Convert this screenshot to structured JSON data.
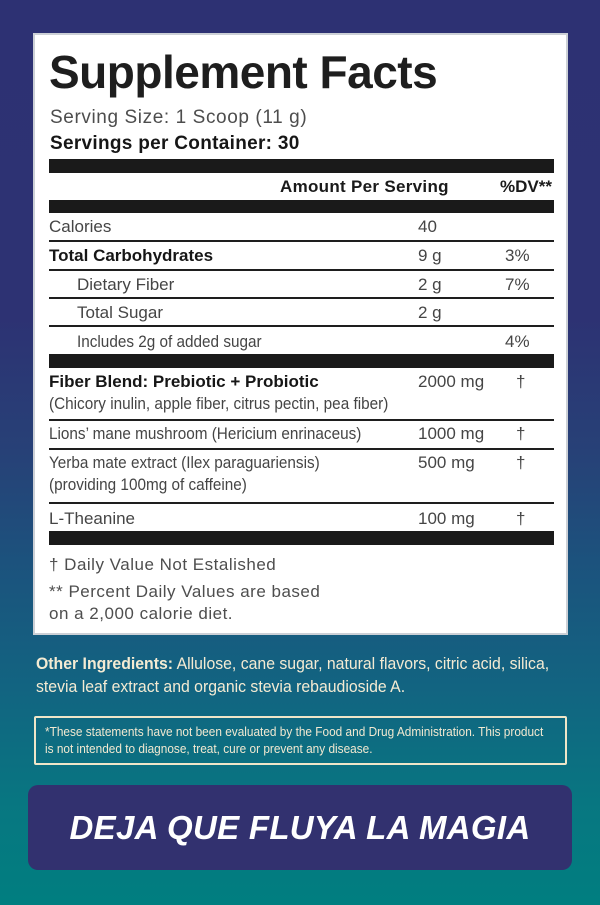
{
  "panel": {
    "title": "Supplement Facts",
    "serving_size": "Serving Size: 1 Scoop (11 g)",
    "servings_per_container": "Servings per Container: 30",
    "header": {
      "amount": "Amount Per Serving",
      "dv": "%DV**"
    },
    "nutrient_rows": [
      {
        "name": "Calories",
        "amount": "40",
        "dv": ""
      },
      {
        "name": "Total Carbohydrates",
        "amount": "9 g",
        "dv": "3%"
      },
      {
        "name": "Dietary Fiber",
        "amount": "2 g",
        "dv": "7%"
      },
      {
        "name": "Total Sugar",
        "amount": "2 g",
        "dv": ""
      },
      {
        "name": "Includes 2g of added sugar",
        "amount": "",
        "dv": "4%"
      }
    ],
    "supplement_rows": [
      {
        "name": "Fiber Blend: Prebiotic + Probiotic",
        "subtitle": "(Chicory inulin, apple fiber, citrus pectin, pea fiber)",
        "amount": "2000 mg",
        "dv": "†"
      },
      {
        "name": "Lions’ mane mushroom (Hericium enrinaceus)",
        "subtitle": "",
        "amount": "1000 mg",
        "dv": "†"
      },
      {
        "name": "Yerba mate extract (Ilex paraguariensis)",
        "subtitle": "(providing 100mg of caffeine)",
        "amount": "500 mg",
        "dv": "†"
      },
      {
        "name": "L-Theanine",
        "subtitle": "",
        "amount": "100 mg",
        "dv": "†"
      }
    ],
    "footnotes": {
      "line1": "† Daily Value Not Estalished",
      "line2": "** Percent Daily Values are based",
      "line3": "on a 2,000 calorie diet."
    }
  },
  "other_ingredients": {
    "label": "Other Ingredients:",
    "text": " Allulose, cane sugar, natural flavors, citric acid, silica, stevia leaf extract and organic stevia rebaudioside A."
  },
  "disclaimer": "*These statements have not been evaluated by the Food and Drug Administration. This product is not intended to diagnose, treat, cure or prevent any disease.",
  "banner": {
    "text": "DEJA QUE FLUYA LA MAGIA"
  },
  "colors": {
    "background_top": "#2d3173",
    "background_bottom": "#007e80",
    "panel_background": "#ffffff",
    "panel_text": "#1e1e1e",
    "cream_text": "#f2e9d1",
    "banner_background": "#32316f",
    "banner_text": "#ffffff"
  }
}
